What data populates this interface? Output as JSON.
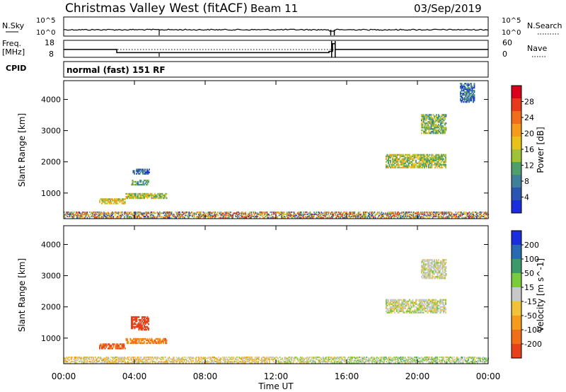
{
  "header": {
    "station": "Christmas Valley West (fitACF)",
    "beam": "Beam 11",
    "date": "03/Sep/2019"
  },
  "noise_panel": {
    "left_label": "N.Sky",
    "right_label": "N.Search",
    "ticks": [
      "10^5",
      "10^0"
    ]
  },
  "freq_panel": {
    "left_label": "Freq.",
    "left_unit": "[MHz]",
    "right_label": "Nave",
    "left_ticks": [
      "18",
      "8"
    ],
    "right_ticks": [
      "60",
      "0"
    ]
  },
  "cpid_panel": {
    "label": "CPID",
    "text": "normal (fast) 151 RF"
  },
  "x_axis": {
    "label": "Time UT",
    "ticks": [
      "00:00",
      "04:00",
      "08:00",
      "12:00",
      "16:00",
      "20:00",
      "00:00"
    ]
  },
  "chart_data": [
    {
      "type": "heatmap",
      "quantity": "Power",
      "ylabel": "Slant Range [km]",
      "ylim": [
        180,
        4600
      ],
      "yticks": [
        1000,
        2000,
        3000,
        4000
      ],
      "ytick_labels": [
        "1000",
        "2000",
        "3000",
        "4000"
      ],
      "xlim_hours": [
        0,
        24
      ],
      "colorbar": {
        "label": "Power [dB]",
        "ticks": [
          "4",
          "8",
          "12",
          "16",
          "20",
          "24",
          "28"
        ],
        "colors": [
          "#1a2ee0",
          "#2a55b0",
          "#3f7f9a",
          "#4f9f6a",
          "#9fc23a",
          "#e8c21a",
          "#f59a1a",
          "#f06e1a",
          "#e83a1a",
          "#d8001a"
        ]
      },
      "regions": [
        {
          "t": [
            0,
            24
          ],
          "r": [
            200,
            400
          ],
          "value": "mixed"
        },
        {
          "t": [
            2.0,
            3.5
          ],
          "r": [
            650,
            800
          ],
          "value": 18
        },
        {
          "t": [
            3.5,
            5.8
          ],
          "r": [
            820,
            1000
          ],
          "value": 16
        },
        {
          "t": [
            3.8,
            4.8
          ],
          "r": [
            1250,
            1400
          ],
          "value": 12
        },
        {
          "t": [
            3.9,
            4.8
          ],
          "r": [
            1600,
            1750
          ],
          "value": 8
        },
        {
          "t": [
            18.2,
            21.6
          ],
          "r": [
            1800,
            2250
          ],
          "value": 16
        },
        {
          "t": [
            20.2,
            21.6
          ],
          "r": [
            2900,
            3500
          ],
          "value": 14
        },
        {
          "t": [
            22.4,
            23.2
          ],
          "r": [
            3900,
            4500
          ],
          "value": 8
        }
      ]
    },
    {
      "type": "heatmap",
      "quantity": "Velocity",
      "ylabel": "Slant Range [km]",
      "ylim": [
        180,
        4600
      ],
      "yticks": [
        1000,
        2000,
        3000,
        4000
      ],
      "ytick_labels": [
        "1000",
        "2000",
        "3000",
        "4000"
      ],
      "xlim_hours": [
        0,
        24
      ],
      "colorbar": {
        "label": "Velocity [m s^-1]",
        "ticks": [
          "200",
          "100",
          "50",
          "15",
          "-15",
          "-50",
          "-100",
          "-200"
        ],
        "colors": [
          "#1a2ee0",
          "#2a6ab0",
          "#3a9a6a",
          "#7acc3a",
          "#c8c8c8",
          "#f0c23a",
          "#f59a1a",
          "#f06e1a",
          "#e8401a"
        ]
      },
      "regions": [
        {
          "t": [
            0,
            24
          ],
          "r": [
            200,
            400
          ],
          "value": "mixed"
        },
        {
          "t": [
            2.0,
            3.5
          ],
          "r": [
            650,
            800
          ],
          "value": -150
        },
        {
          "t": [
            3.5,
            5.8
          ],
          "r": [
            820,
            1000
          ],
          "value": -120
        },
        {
          "t": [
            3.8,
            4.8
          ],
          "r": [
            1250,
            1700
          ],
          "value": -200
        },
        {
          "t": [
            18.2,
            21.6
          ],
          "r": [
            1800,
            2250
          ],
          "value": 0
        },
        {
          "t": [
            20.2,
            21.6
          ],
          "r": [
            2900,
            3500
          ],
          "value": 0
        }
      ]
    }
  ]
}
